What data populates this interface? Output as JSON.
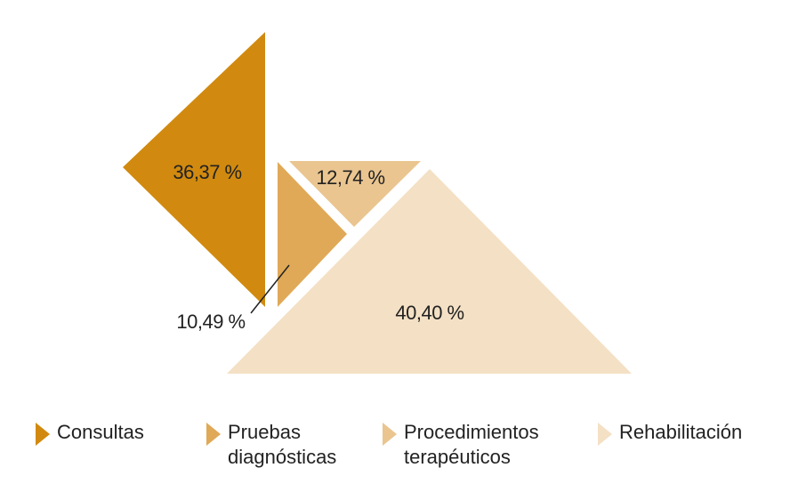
{
  "chart_data": {
    "type": "tangram",
    "categories": [
      "Consultas",
      "Pruebas diagnósticas",
      "Procedimientos terapéuticos",
      "Rehabilitación"
    ],
    "values": [
      36.37,
      10.49,
      12.74,
      40.4
    ],
    "value_labels": [
      "36,37 %",
      "10,49 %",
      "12,74 %",
      "40,40 %"
    ],
    "colors": [
      "#d18a0f",
      "#e0a957",
      "#eac590",
      "#f4e0c4"
    ]
  }
}
